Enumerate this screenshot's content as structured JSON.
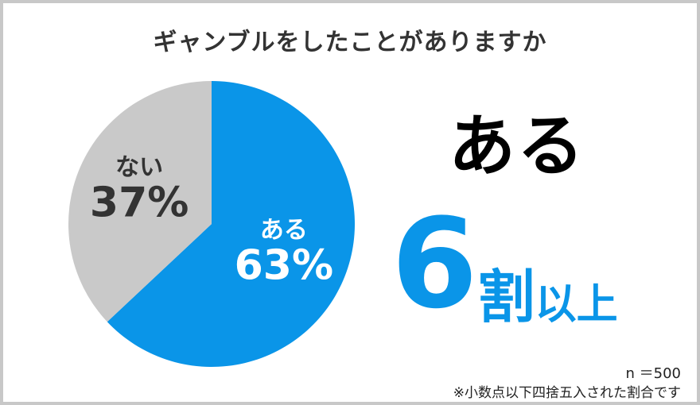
{
  "title": "ギャンブルをしたことがありますか",
  "chart_data": {
    "type": "pie",
    "title": "ギャンブルをしたことがありますか",
    "slices": [
      {
        "label": "ある",
        "value": 63,
        "value_label": "63%",
        "color": "#0a95e8",
        "text_color": "#ffffff"
      },
      {
        "label": "ない",
        "value": 37,
        "value_label": "37%",
        "color": "#c9c9c9",
        "text_color": "#333333"
      }
    ],
    "start": "12 o'clock",
    "direction": "clockwise"
  },
  "summary": {
    "answer": "ある",
    "number": "6",
    "unit": "割",
    "suffix": "以上",
    "accent": "#0a95e8"
  },
  "sample_size": "n ＝500",
  "note": "※小数点以下四捨五入された割合です"
}
